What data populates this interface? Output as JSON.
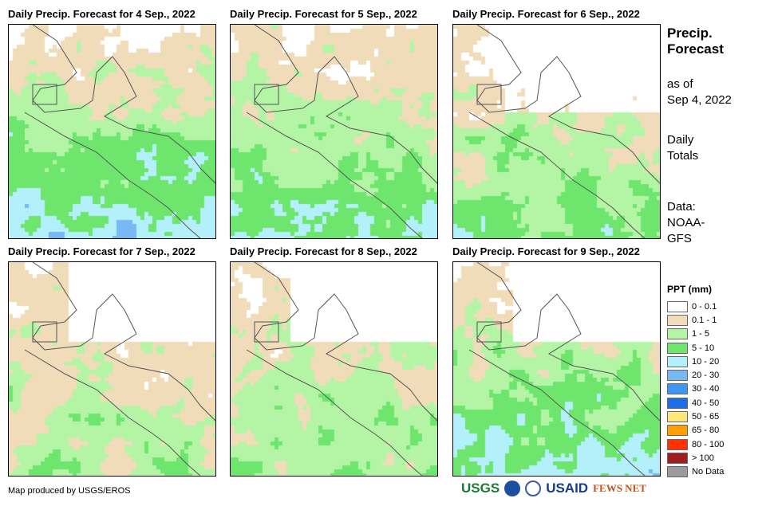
{
  "panels": [
    {
      "title": "Daily Precip. Forecast for 4 Sep., 2022"
    },
    {
      "title": "Daily Precip. Forecast for 5 Sep., 2022"
    },
    {
      "title": "Daily Precip. Forecast for 6 Sep., 2022"
    },
    {
      "title": "Daily Precip. Forecast for 7 Sep., 2022"
    },
    {
      "title": "Daily Precip. Forecast for 8 Sep., 2022"
    },
    {
      "title": "Daily Precip. Forecast for 9 Sep., 2022"
    }
  ],
  "side": {
    "heading1": "Precip.",
    "heading2": "Forecast",
    "asof1": "as of",
    "asof2": "Sep 4, 2022",
    "daily1": "Daily",
    "daily2": "Totals",
    "data1": "Data:",
    "data2": "NOAA-",
    "data3": "GFS"
  },
  "legend": {
    "title": "PPT (mm)",
    "items": [
      {
        "label": "0 - 0.1",
        "color": "#ffffff"
      },
      {
        "label": "0.1 - 1",
        "color": "#f0dcb9"
      },
      {
        "label": "1 - 5",
        "color": "#b4f5a5"
      },
      {
        "label": "5 - 10",
        "color": "#6ee66e"
      },
      {
        "label": "10 - 20",
        "color": "#b4f0fa"
      },
      {
        "label": "20 - 30",
        "color": "#78b9f5"
      },
      {
        "label": "30 - 40",
        "color": "#4196f0"
      },
      {
        "label": "40 - 50",
        "color": "#1e6ee6"
      },
      {
        "label": "50 - 65",
        "color": "#ffe678"
      },
      {
        "label": "65 - 80",
        "color": "#ffa000"
      },
      {
        "label": "80 - 100",
        "color": "#ff3200"
      },
      {
        "label": "> 100",
        "color": "#a01e1e"
      },
      {
        "label": "No Data",
        "color": "#9b9b9b"
      }
    ]
  },
  "credit": "Map produced by USGS/EROS",
  "logos": {
    "usgs": "USGS",
    "usaid": "USAID",
    "fews": "FEWS NET"
  }
}
